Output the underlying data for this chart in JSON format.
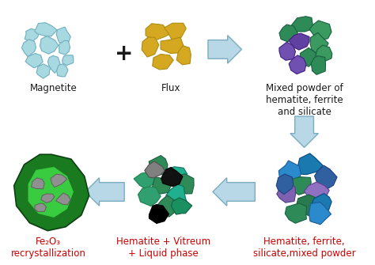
{
  "bg_color": "#ffffff",
  "arrow_color_fill": "#b8d8e8",
  "arrow_color_edge": "#7aacbf",
  "magnetite_fill": "#a8d8e0",
  "magnetite_edge": "#70b0c0",
  "flux_fill": "#d4a820",
  "flux_edge": "#b08a10",
  "mixed_top_colors": [
    "#2e8b57",
    "#3a9a60",
    "#6040a0",
    "#7050b0",
    "#9080cc",
    "#b0a0dd",
    "#248040"
  ],
  "mixed_top_edges": [
    "#1a6040",
    "#1a6040",
    "#402080",
    "#402080",
    "#604090",
    "#7060a0",
    "#1a6040"
  ],
  "hf_colors": [
    "#1a7ab0",
    "#2a8acc",
    "#3060a0",
    "#2e8b57",
    "#9070c0",
    "#8060b0",
    "#2a7a50"
  ],
  "hf_edges": [
    "#0a4a80",
    "#1a5a9c",
    "#204080",
    "#1a6040",
    "#604090",
    "#504080",
    "#1a5a40"
  ],
  "hv_colors": [
    "#2e8b57",
    "#20b090",
    "#30a070",
    "#1a9060",
    "#000000",
    "#111111",
    "#808080",
    "#909090",
    "#606060"
  ],
  "hv_edges": [
    "#1a6040",
    "#107060",
    "#208050",
    "#106040",
    "#000000",
    "#000000",
    "#505050",
    "#606060",
    "#404040"
  ],
  "fe2o3_dark_green": "#1a7a20",
  "fe2o3_mid_green": "#28a030",
  "fe2o3_light_green": "#3acc40",
  "fe2o3_spot_fill": "#909090",
  "fe2o3_spot_edge": "#606060",
  "label_magnetite": "Magnetite",
  "label_flux": "Flux",
  "label_mixed_top": "Mixed powder of\nhematite, ferrite\nand silicate",
  "label_fe2o3_line1": "Fe",
  "label_fe2o3_sub": "2",
  "label_fe2o3_line2": "O",
  "label_fe2o3_sub2": "3",
  "label_fe2o3_rest": "\nrecrystallization",
  "label_fe2o3_full": "Fe₂O₃\nrecrystallization",
  "label_hv": "Hematite + Vitreum\n+ Liquid phase",
  "label_hf": "Hematite, ferrite,\nsilicate,mixed powder",
  "red_color": "#cc0000",
  "black_color": "#1a1a1a",
  "label_fontsize": 8.5,
  "plus_fontsize": 20
}
